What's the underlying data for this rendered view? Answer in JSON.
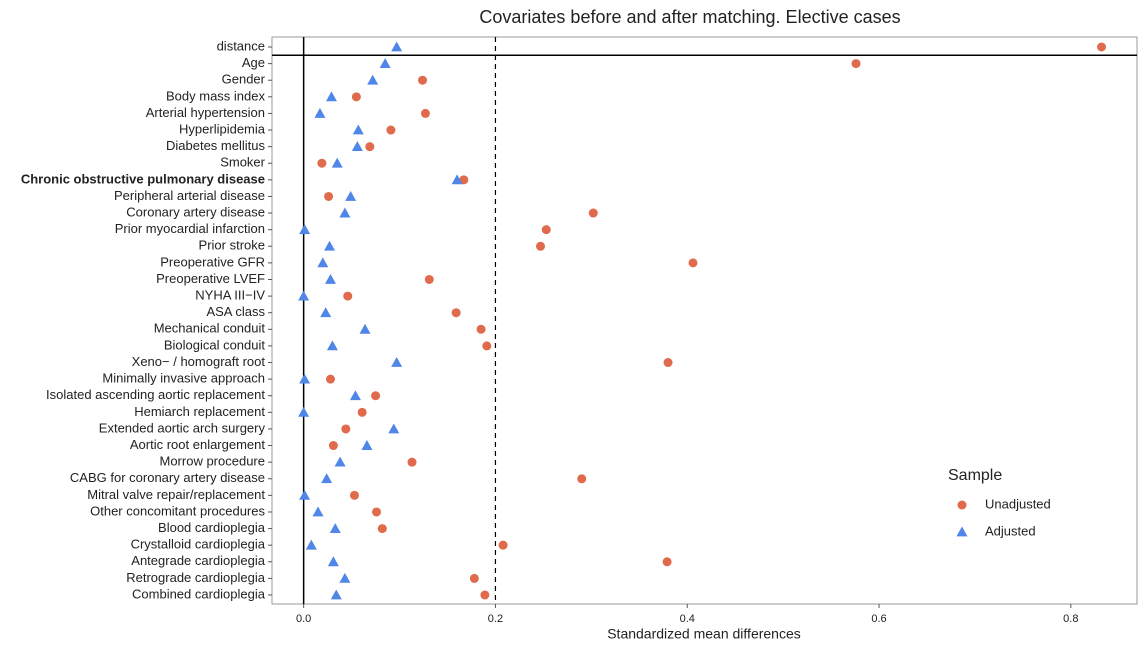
{
  "chart_data": {
    "type": "dot",
    "title": "Covariates before and after matching. Elective cases",
    "x_label": "Standardized mean differences",
    "categories": [
      "distance",
      "Age",
      "Gender",
      "Body mass index",
      "Arterial hypertension",
      "Hyperlipidemia",
      "Diabetes mellitus",
      "Smoker",
      "Chronic obstructive pulmonary disease",
      "Peripheral arterial disease",
      "Coronary artery disease",
      "Prior myocardial infarction",
      "Prior stroke",
      "Preoperative GFR",
      "Preoperative LVEF",
      "NYHA III−IV",
      "ASA class",
      "Mechanical conduit",
      "Biological conduit",
      "Xeno− / homograft root",
      "Minimally invasive approach",
      "Isolated ascending aortic replacement",
      "Hemiarch replacement",
      "Extended aortic arch surgery",
      "Aortic root enlargement",
      "Morrow procedure",
      "CABG for coronary artery disease",
      "Mitral valve repair/replacement",
      "Other concomitant procedures",
      "Blood cardioplegia",
      "Crystalloid cardioplegia",
      "Antegrade cardioplegia",
      "Retrograde cardioplegia",
      "Combined cardioplegia"
    ],
    "series": [
      {
        "name": "Unadjusted",
        "color": "#df6a4c",
        "marker": "circle",
        "values": [
          0.832,
          0.576,
          0.124,
          0.055,
          0.127,
          0.091,
          0.069,
          0.019,
          0.167,
          0.026,
          0.302,
          0.253,
          0.247,
          0.406,
          0.131,
          0.046,
          0.159,
          0.185,
          0.191,
          0.38,
          0.028,
          0.075,
          0.061,
          0.044,
          0.031,
          0.113,
          0.29,
          0.053,
          0.076,
          0.082,
          0.208,
          0.379,
          0.178,
          0.189
        ]
      },
      {
        "name": "Adjusted",
        "color": "#4f86e8",
        "marker": "triangle",
        "values": [
          0.097,
          0.085,
          0.072,
          0.029,
          0.017,
          0.057,
          0.056,
          0.035,
          0.16,
          0.049,
          0.043,
          0.001,
          0.027,
          0.02,
          0.028,
          0.0,
          0.023,
          0.064,
          0.03,
          0.097,
          0.001,
          0.054,
          0.0,
          0.094,
          0.066,
          0.038,
          0.024,
          0.001,
          0.015,
          0.033,
          0.008,
          0.031,
          0.043,
          0.034
        ]
      }
    ],
    "xlim": [
      -0.033,
      0.869
    ],
    "xticks": [
      {
        "value": 0,
        "label": "0.0"
      },
      0.2,
      0.4,
      0.6,
      0.8
    ],
    "vlines": [
      {
        "value": 0,
        "style": "solid"
      },
      {
        "value": 0.2,
        "style": "dashed"
      }
    ],
    "legend_title": "Sample",
    "legend": "right"
  }
}
